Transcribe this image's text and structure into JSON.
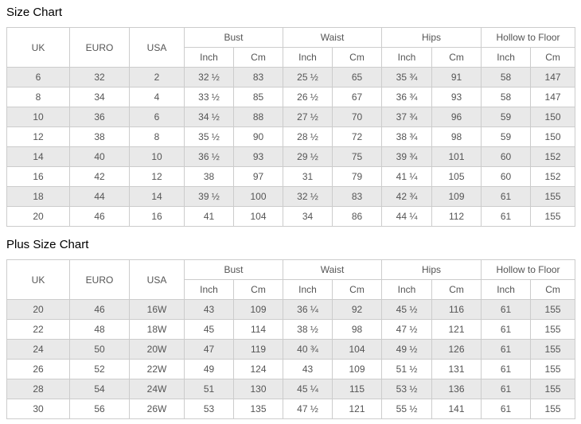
{
  "colors": {
    "title": "#000000",
    "table_text": "#555555",
    "table_border": "#cccccc",
    "shaded_row_background": "#e9e9e9",
    "page_background": "#ffffff"
  },
  "tables": [
    {
      "title": "Size Chart",
      "size_columns": [
        "UK",
        "EURO",
        "USA"
      ],
      "groups": [
        "Bust",
        "Waist",
        "Hips",
        "Hollow to Floor"
      ],
      "sub_headers": [
        "Inch",
        "Cm"
      ],
      "rows": [
        [
          "6",
          "32",
          "2",
          "32 ½",
          "83",
          "25 ½",
          "65",
          "35 ¾",
          "91",
          "58",
          "147"
        ],
        [
          "8",
          "34",
          "4",
          "33 ½",
          "85",
          "26 ½",
          "67",
          "36 ¾",
          "93",
          "58",
          "147"
        ],
        [
          "10",
          "36",
          "6",
          "34 ½",
          "88",
          "27 ½",
          "70",
          "37 ¾",
          "96",
          "59",
          "150"
        ],
        [
          "12",
          "38",
          "8",
          "35 ½",
          "90",
          "28 ½",
          "72",
          "38 ¾",
          "98",
          "59",
          "150"
        ],
        [
          "14",
          "40",
          "10",
          "36 ½",
          "93",
          "29 ½",
          "75",
          "39 ¾",
          "101",
          "60",
          "152"
        ],
        [
          "16",
          "42",
          "12",
          "38",
          "97",
          "31",
          "79",
          "41 ¼",
          "105",
          "60",
          "152"
        ],
        [
          "18",
          "44",
          "14",
          "39 ½",
          "100",
          "32 ½",
          "83",
          "42 ¾",
          "109",
          "61",
          "155"
        ],
        [
          "20",
          "46",
          "16",
          "41",
          "104",
          "34",
          "86",
          "44 ¼",
          "112",
          "61",
          "155"
        ]
      ]
    },
    {
      "title": "Plus Size Chart",
      "size_columns": [
        "UK",
        "EURO",
        "USA"
      ],
      "groups": [
        "Bust",
        "Waist",
        "Hips",
        "Hollow to Floor"
      ],
      "sub_headers": [
        "Inch",
        "Cm"
      ],
      "rows": [
        [
          "20",
          "46",
          "16W",
          "43",
          "109",
          "36 ¼",
          "92",
          "45 ½",
          "116",
          "61",
          "155"
        ],
        [
          "22",
          "48",
          "18W",
          "45",
          "114",
          "38 ½",
          "98",
          "47 ½",
          "121",
          "61",
          "155"
        ],
        [
          "24",
          "50",
          "20W",
          "47",
          "119",
          "40 ¾",
          "104",
          "49 ½",
          "126",
          "61",
          "155"
        ],
        [
          "26",
          "52",
          "22W",
          "49",
          "124",
          "43",
          "109",
          "51 ½",
          "131",
          "61",
          "155"
        ],
        [
          "28",
          "54",
          "24W",
          "51",
          "130",
          "45 ¼",
          "115",
          "53 ½",
          "136",
          "61",
          "155"
        ],
        [
          "30",
          "56",
          "26W",
          "53",
          "135",
          "47 ½",
          "121",
          "55 ½",
          "141",
          "61",
          "155"
        ]
      ]
    }
  ]
}
